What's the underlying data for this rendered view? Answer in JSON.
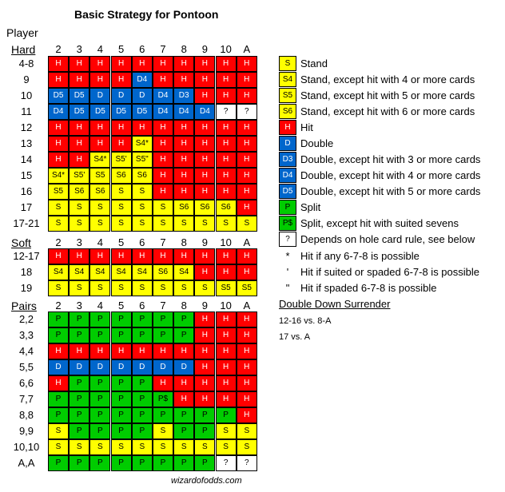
{
  "title": "Basic Strategy for Pontoon",
  "player_label": "Player",
  "dealer_columns": [
    "2",
    "3",
    "4",
    "5",
    "6",
    "7",
    "8",
    "9",
    "10",
    "A"
  ],
  "sections": [
    {
      "name": "Hard",
      "rows": [
        {
          "label": "4-8",
          "cells": [
            "H",
            "H",
            "H",
            "H",
            "H",
            "H",
            "H",
            "H",
            "H",
            "H"
          ],
          "fill": [
            "H",
            "H",
            "H",
            "H",
            "H",
            "H",
            "H",
            "H",
            "H",
            "H"
          ]
        },
        {
          "label": "9",
          "cells": [
            "H",
            "H",
            "H",
            "H",
            "D4",
            "H",
            "H",
            "H",
            "H",
            "H"
          ],
          "fill": [
            "H",
            "H",
            "H",
            "H",
            "D",
            "H",
            "H",
            "H",
            "H",
            "H"
          ]
        },
        {
          "label": "10",
          "cells": [
            "D5",
            "D5",
            "D",
            "D",
            "D",
            "D4",
            "D3",
            "H",
            "H",
            "H"
          ],
          "fill": [
            "D",
            "D",
            "D",
            "D",
            "D",
            "D",
            "D",
            "H",
            "H",
            "H"
          ]
        },
        {
          "label": "11",
          "cells": [
            "D4",
            "D5",
            "D5",
            "D5",
            "D5",
            "D4",
            "D4",
            "D4",
            "?",
            "?"
          ],
          "fill": [
            "D",
            "D",
            "D",
            "D",
            "D",
            "D",
            "D",
            "D",
            "Q",
            "Q"
          ]
        },
        {
          "label": "12",
          "cells": [
            "H",
            "H",
            "H",
            "H",
            "H",
            "H",
            "H",
            "H",
            "H",
            "H"
          ],
          "fill": [
            "H",
            "H",
            "H",
            "H",
            "H",
            "H",
            "H",
            "H",
            "H",
            "H"
          ]
        },
        {
          "label": "13",
          "cells": [
            "H",
            "H",
            "H",
            "H",
            "S4*",
            "H",
            "H",
            "H",
            "H",
            "H"
          ],
          "fill": [
            "H",
            "H",
            "H",
            "H",
            "S",
            "H",
            "H",
            "H",
            "H",
            "H"
          ]
        },
        {
          "label": "14",
          "cells": [
            "H",
            "H",
            "S4*",
            "S5'",
            "S5\"",
            "H",
            "H",
            "H",
            "H",
            "H"
          ],
          "fill": [
            "H",
            "H",
            "S",
            "S",
            "S",
            "H",
            "H",
            "H",
            "H",
            "H"
          ]
        },
        {
          "label": "15",
          "cells": [
            "S4*",
            "S5'",
            "S5",
            "S6",
            "S6",
            "H",
            "H",
            "H",
            "H",
            "H"
          ],
          "fill": [
            "S",
            "S",
            "S",
            "S",
            "S",
            "H",
            "H",
            "H",
            "H",
            "H"
          ]
        },
        {
          "label": "16",
          "cells": [
            "S5",
            "S6",
            "S6",
            "S",
            "S",
            "H",
            "H",
            "H",
            "H",
            "H"
          ],
          "fill": [
            "S",
            "S",
            "S",
            "S",
            "S",
            "H",
            "H",
            "H",
            "H",
            "H"
          ]
        },
        {
          "label": "17",
          "cells": [
            "S",
            "S",
            "S",
            "S",
            "S",
            "S",
            "S6",
            "S6",
            "S6",
            "H"
          ],
          "fill": [
            "S",
            "S",
            "S",
            "S",
            "S",
            "S",
            "S",
            "S",
            "S",
            "H"
          ]
        },
        {
          "label": "17-21",
          "cells": [
            "S",
            "S",
            "S",
            "S",
            "S",
            "S",
            "S",
            "S",
            "S",
            "S"
          ],
          "fill": [
            "S",
            "S",
            "S",
            "S",
            "S",
            "S",
            "S",
            "S",
            "S",
            "S"
          ]
        }
      ]
    },
    {
      "name": "Soft",
      "rows": [
        {
          "label": "12-17",
          "cells": [
            "H",
            "H",
            "H",
            "H",
            "H",
            "H",
            "H",
            "H",
            "H",
            "H"
          ],
          "fill": [
            "H",
            "H",
            "H",
            "H",
            "H",
            "H",
            "H",
            "H",
            "H",
            "H"
          ]
        },
        {
          "label": "18",
          "cells": [
            "S4",
            "S4",
            "S4",
            "S4",
            "S4",
            "S6",
            "S4",
            "H",
            "H",
            "H"
          ],
          "fill": [
            "S",
            "S",
            "S",
            "S",
            "S",
            "S",
            "S",
            "H",
            "H",
            "H"
          ]
        },
        {
          "label": "19",
          "cells": [
            "S",
            "S",
            "S",
            "S",
            "S",
            "S",
            "S",
            "S",
            "S5",
            "S5"
          ],
          "fill": [
            "S",
            "S",
            "S",
            "S",
            "S",
            "S",
            "S",
            "S",
            "S",
            "S"
          ]
        }
      ]
    },
    {
      "name": "Pairs",
      "rows": [
        {
          "label": "2,2",
          "cells": [
            "P",
            "P",
            "P",
            "P",
            "P",
            "P",
            "P",
            "H",
            "H",
            "H"
          ],
          "fill": [
            "P",
            "P",
            "P",
            "P",
            "P",
            "P",
            "P",
            "H",
            "H",
            "H"
          ]
        },
        {
          "label": "3,3",
          "cells": [
            "P",
            "P",
            "P",
            "P",
            "P",
            "P",
            "P",
            "H",
            "H",
            "H"
          ],
          "fill": [
            "P",
            "P",
            "P",
            "P",
            "P",
            "P",
            "P",
            "H",
            "H",
            "H"
          ]
        },
        {
          "label": "4,4",
          "cells": [
            "H",
            "H",
            "H",
            "H",
            "H",
            "H",
            "H",
            "H",
            "H",
            "H"
          ],
          "fill": [
            "H",
            "H",
            "H",
            "H",
            "H",
            "H",
            "H",
            "H",
            "H",
            "H"
          ]
        },
        {
          "label": "5,5",
          "cells": [
            "D",
            "D",
            "D",
            "D",
            "D",
            "D",
            "D",
            "H",
            "H",
            "H"
          ],
          "fill": [
            "D",
            "D",
            "D",
            "D",
            "D",
            "D",
            "D",
            "H",
            "H",
            "H"
          ]
        },
        {
          "label": "6,6",
          "cells": [
            "H",
            "P",
            "P",
            "P",
            "P",
            "H",
            "H",
            "H",
            "H",
            "H"
          ],
          "fill": [
            "H",
            "P",
            "P",
            "P",
            "P",
            "H",
            "H",
            "H",
            "H",
            "H"
          ]
        },
        {
          "label": "7,7",
          "cells": [
            "P",
            "P",
            "P",
            "P",
            "P",
            "P$",
            "H",
            "H",
            "H",
            "H"
          ],
          "fill": [
            "P",
            "P",
            "P",
            "P",
            "P",
            "P",
            "H",
            "H",
            "H",
            "H"
          ]
        },
        {
          "label": "8,8",
          "cells": [
            "P",
            "P",
            "P",
            "P",
            "P",
            "P",
            "P",
            "P",
            "P",
            "H"
          ],
          "fill": [
            "P",
            "P",
            "P",
            "P",
            "P",
            "P",
            "P",
            "P",
            "P",
            "H"
          ]
        },
        {
          "label": "9,9",
          "cells": [
            "S",
            "P",
            "P",
            "P",
            "P",
            "S",
            "P",
            "P",
            "S",
            "S"
          ],
          "fill": [
            "S",
            "P",
            "P",
            "P",
            "P",
            "S",
            "P",
            "P",
            "S",
            "S"
          ]
        },
        {
          "label": "10,10",
          "cells": [
            "S",
            "S",
            "S",
            "S",
            "S",
            "S",
            "S",
            "S",
            "S",
            "S"
          ],
          "fill": [
            "S",
            "S",
            "S",
            "S",
            "S",
            "S",
            "S",
            "S",
            "S",
            "S"
          ]
        },
        {
          "label": "A,A",
          "cells": [
            "P",
            "P",
            "P",
            "P",
            "P",
            "P",
            "P",
            "P",
            "?",
            "?"
          ],
          "fill": [
            "P",
            "P",
            "P",
            "P",
            "P",
            "P",
            "P",
            "P",
            "Q",
            "Q"
          ]
        }
      ]
    }
  ],
  "legend": [
    {
      "symbol": "S",
      "fill": "S",
      "text": "Stand"
    },
    {
      "symbol": "S4",
      "fill": "S",
      "text": "Stand, except hit with 4 or more cards"
    },
    {
      "symbol": "S5",
      "fill": "S",
      "text": "Stand, except hit with 5 or more cards"
    },
    {
      "symbol": "S6",
      "fill": "S",
      "text": "Stand, except hit with 6 or more cards"
    },
    {
      "symbol": "H",
      "fill": "H",
      "text": "Hit"
    },
    {
      "symbol": "D",
      "fill": "D",
      "text": "Double"
    },
    {
      "symbol": "D3",
      "fill": "D",
      "text": "Double, except hit with 3 or more cards"
    },
    {
      "symbol": "D4",
      "fill": "D",
      "text": "Double, except hit with 4 or more cards"
    },
    {
      "symbol": "D5",
      "fill": "D",
      "text": "Double, except hit with 5 or more cards"
    },
    {
      "symbol": "P",
      "fill": "P",
      "text": "Split"
    },
    {
      "symbol": "P$",
      "fill": "P",
      "text": "Split, except hit with suited sevens"
    },
    {
      "symbol": "?",
      "fill": "Q",
      "text": "Depends on hole card rule, see below"
    }
  ],
  "notes": [
    {
      "symbol": "*",
      "text": "Hit if any 6-7-8 is possible"
    },
    {
      "symbol": "'",
      "text": "Hit if suited or spaded 6-7-8 is possible"
    },
    {
      "symbol": "\"",
      "text": "Hit if spaded 6-7-8 is possible"
    }
  ],
  "double_down_surrender": {
    "title": "Double Down Surrender",
    "lines": [
      "12-16 vs. 8-A",
      "17 vs. A"
    ]
  },
  "footer": "wizardofodds.com",
  "colors": {
    "hit": "#ff0000",
    "stand": "#ffff00",
    "double": "#0066cc",
    "split": "#00cc00",
    "unknown": "#ffffff"
  }
}
